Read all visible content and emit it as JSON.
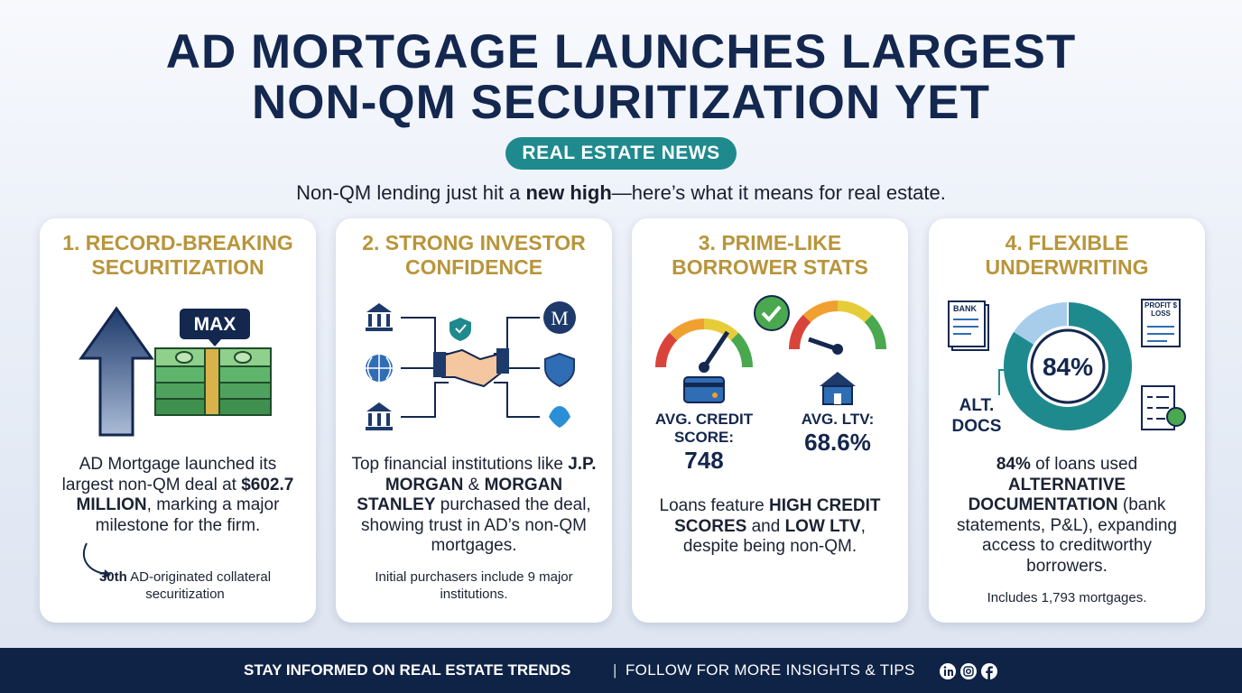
{
  "header": {
    "title_lines": [
      "AD MORTGAGE LAUNCHES LARGEST",
      "NON-QM SECURITIZATION YET"
    ],
    "badge": "REAL ESTATE NEWS",
    "subtitle": [
      {
        "text": "Non-QM lending just hit a "
      },
      {
        "text": "new high",
        "bold": true
      },
      {
        "text": "—here’s what it means for real estate."
      }
    ]
  },
  "cards": [
    {
      "heading": "1. RECORD-BREAKING SECURITIZATION",
      "graphic": {
        "tag": "MAX"
      },
      "body": [
        {
          "text": "AD Mortgage launched its largest non-QM deal at "
        },
        {
          "text": "$602.7 MILLION",
          "bold": true
        },
        {
          "text": ", marking a major milestone for the firm."
        }
      ],
      "note": [
        {
          "text": "30th",
          "bold": true
        },
        {
          "text": " AD-originated collateral securitization"
        }
      ]
    },
    {
      "heading": "2. STRONG INVESTOR CONFIDENCE",
      "graphic": {
        "logo": "M"
      },
      "body": [
        {
          "text": "Top financial institutions like "
        },
        {
          "text": "J.P. MORGAN",
          "bold": true
        },
        {
          "text": " & "
        },
        {
          "text": "MORGAN STANLEY",
          "bold": true
        },
        {
          "text": " purchased the deal, showing trust in AD’s non-QM mortgages."
        }
      ],
      "note": [
        {
          "text": "Initial purchasers include 9 major institutions."
        }
      ]
    },
    {
      "heading": "3. PRIME-LIKE BORROWER STATS",
      "graphic": {
        "stats": [
          {
            "label": "AVG. CREDIT SCORE:",
            "value": "748"
          },
          {
            "label": "AVG. LTV:",
            "value": "68.6%"
          }
        ]
      },
      "body": [
        {
          "text": "Loans feature "
        },
        {
          "text": "HIGH CREDIT SCORES",
          "bold": true
        },
        {
          "text": " and "
        },
        {
          "text": "LOW LTV",
          "bold": true
        },
        {
          "text": ", despite being non-QM."
        }
      ]
    },
    {
      "heading": "4. FLEXIBLE UNDERWRITING",
      "graphic": {
        "docs": [
          "BANK",
          "PROFIT $ LOSS"
        ],
        "label": "ALT. DOCS",
        "donut": {
          "value": 84,
          "label": "84%"
        }
      },
      "body": [
        {
          "text": "84%",
          "bold": true
        },
        {
          "text": " of loans used "
        },
        {
          "text": "ALTERNATIVE DOCUMENTATION",
          "bold": true
        },
        {
          "text": " (bank statements, P&L), expanding access to creditworthy borrowers."
        }
      ],
      "note": [
        {
          "text": "Includes 1,793 mortgages."
        }
      ]
    }
  ],
  "footer": {
    "left": "STAY INFORMED ON REAL ESTATE TRENDS",
    "right": "FOLLOW FOR MORE INSIGHTS & TIPS"
  }
}
